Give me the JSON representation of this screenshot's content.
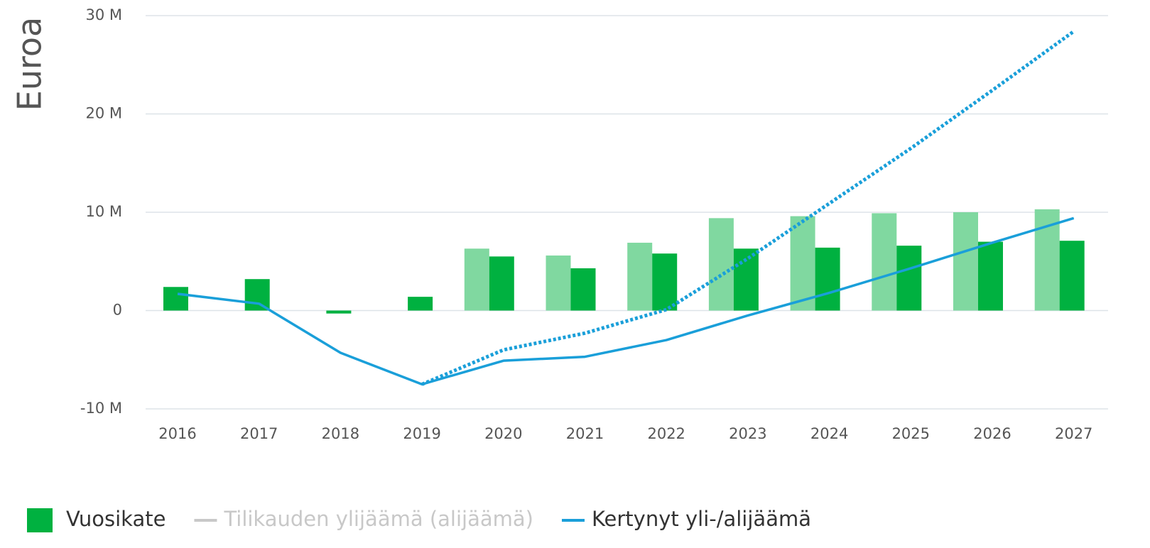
{
  "chart_data": {
    "type": "bar",
    "y_axis_label": "Euroa",
    "categories": [
      "2016",
      "2017",
      "2018",
      "2019",
      "2020",
      "2021",
      "2022",
      "2023",
      "2024",
      "2025",
      "2026",
      "2027"
    ],
    "ylim": [
      -10,
      30
    ],
    "yticks": [
      {
        "value": -10,
        "label": "-10 M"
      },
      {
        "value": 0,
        "label": "0"
      },
      {
        "value": 10,
        "label": "10 M"
      },
      {
        "value": 20,
        "label": "20 M"
      },
      {
        "value": 30,
        "label": "30 M"
      }
    ],
    "grid": true,
    "series": [
      {
        "type": "bar",
        "color": "#80d8a0",
        "offset": "left",
        "values": [
          null,
          null,
          null,
          null,
          6.3,
          5.6,
          6.9,
          9.4,
          9.6,
          9.9,
          10.0,
          10.3
        ]
      },
      {
        "type": "bar",
        "name": "Vuosikate",
        "color": "#00b140",
        "offset": "right",
        "values": [
          2.4,
          3.2,
          -0.3,
          1.4,
          5.5,
          4.3,
          5.8,
          6.3,
          6.4,
          6.6,
          7.0,
          7.1
        ]
      },
      {
        "type": "line",
        "name": "Tilikauden ylijäämä (alijäämä)",
        "color": "#c8c8c8",
        "visible": false
      },
      {
        "type": "line",
        "name": "Kertynyt yli-/alijäämä",
        "color": "#1a9fd9",
        "values": [
          1.7,
          0.7,
          -4.3,
          -7.5,
          -5.1,
          -4.7,
          -3.0,
          -0.5,
          1.8,
          4.3,
          6.9,
          9.4
        ]
      },
      {
        "type": "line",
        "color": "#1a9fd9",
        "dashed": true,
        "values": [
          null,
          null,
          null,
          -7.5,
          -4.0,
          -2.3,
          0.1,
          5.3,
          10.9,
          16.5,
          22.4,
          28.4
        ]
      }
    ]
  }
}
